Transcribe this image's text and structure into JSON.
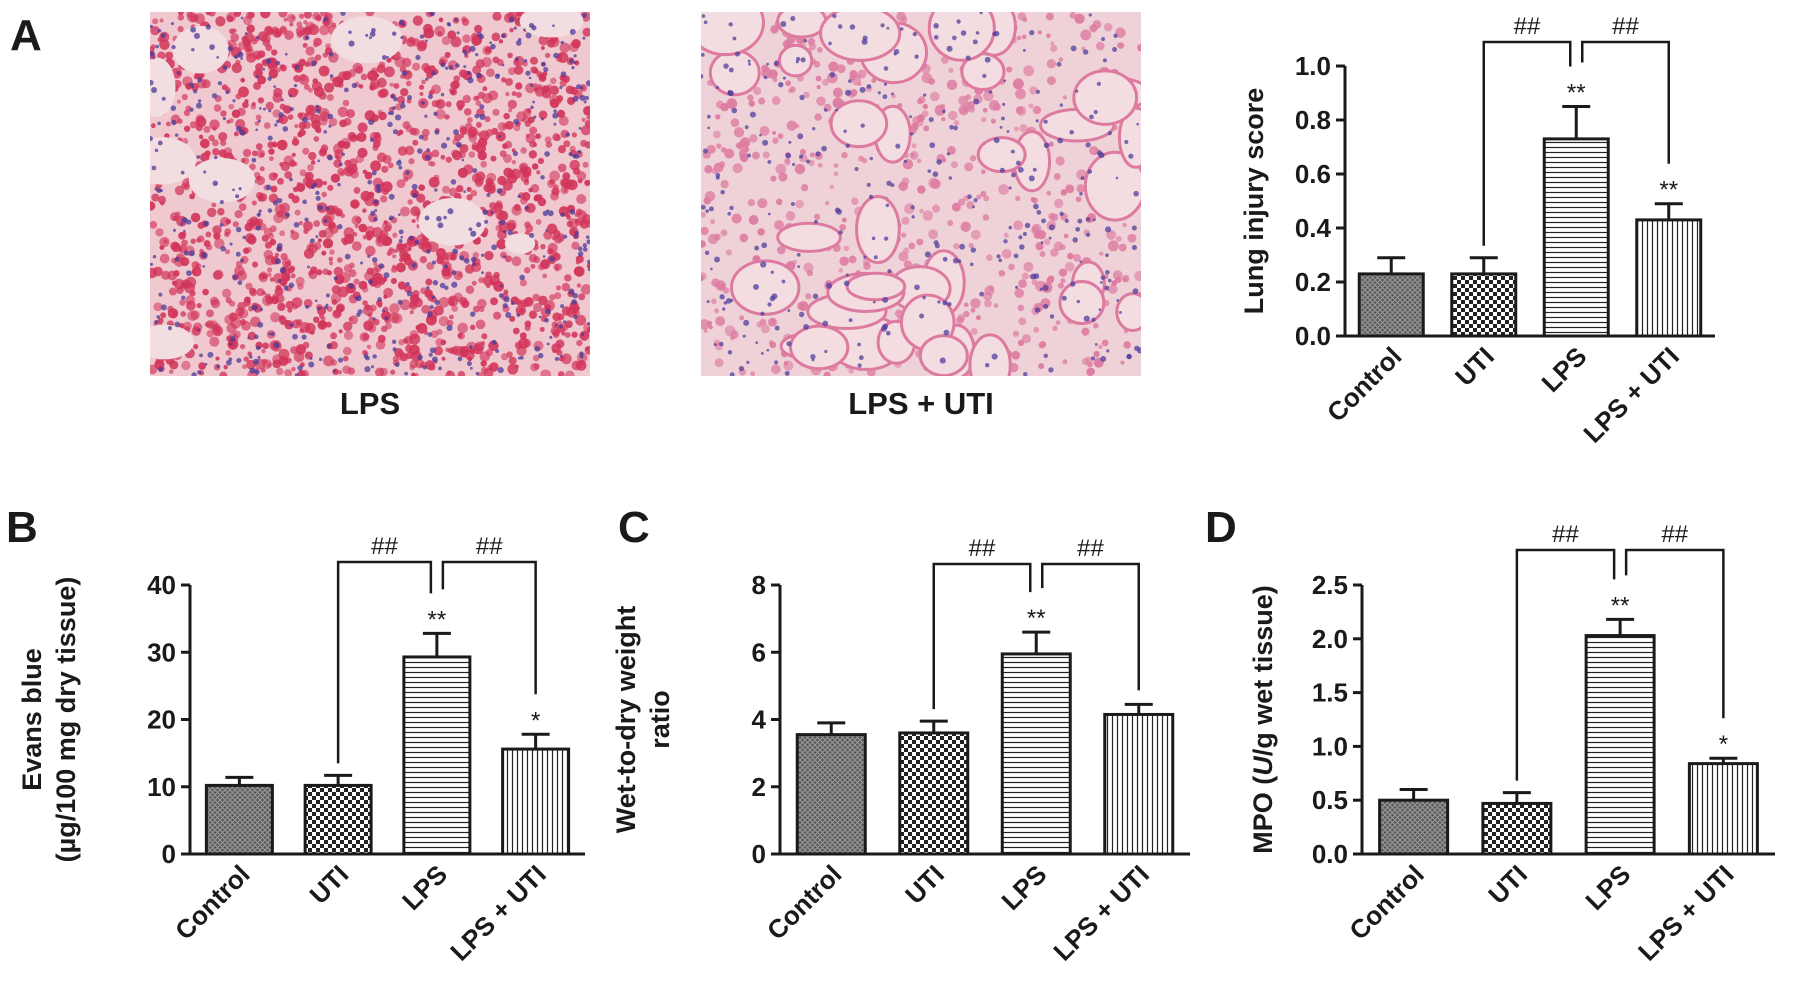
{
  "panels": {
    "a": "A",
    "b": "B",
    "c": "C",
    "d": "D"
  },
  "images": [
    {
      "caption": "LPS",
      "tissue_color": "#d2355a",
      "stain_color": "#4a3a9a",
      "background": "#efc9cf"
    },
    {
      "caption": "LPS + UTI",
      "tissue_color": "#dd7aa0",
      "stain_color": "#4f3f9e",
      "background": "#efd2d8"
    }
  ],
  "chart_data": [
    {
      "type": "bar",
      "categories": [
        "Control",
        "UTI",
        "LPS",
        "LPS + UTI"
      ],
      "values": [
        0.23,
        0.23,
        0.73,
        0.43
      ],
      "errors": [
        0.06,
        0.06,
        0.12,
        0.06
      ],
      "patterns": [
        "crosshatch",
        "checker",
        "horizontal",
        "vertical"
      ],
      "ylabel": "Lung injury score",
      "ylim": [
        0,
        1.0
      ],
      "yticks": [
        "0.0",
        "0.2",
        "0.4",
        "0.6",
        "0.8",
        "1.0"
      ],
      "stars": [
        "",
        "",
        "**",
        "**"
      ],
      "comparisons": [
        {
          "from": 1,
          "to": 2,
          "label": "##"
        },
        {
          "from": 2,
          "to": 3,
          "label": "##"
        }
      ]
    },
    {
      "type": "bar",
      "categories": [
        "Control",
        "UTI",
        "LPS",
        "LPS + UTI"
      ],
      "values": [
        10.2,
        10.2,
        29.3,
        15.6
      ],
      "errors": [
        1.2,
        1.5,
        3.5,
        2.2
      ],
      "patterns": [
        "crosshatch",
        "checker",
        "horizontal",
        "vertical"
      ],
      "ylabel": "Evans blue",
      "ylabel2": "(µg/100 mg dry tissue)",
      "ylim": [
        0,
        40
      ],
      "yticks": [
        "0",
        "10",
        "20",
        "30",
        "40"
      ],
      "stars": [
        "",
        "",
        "**",
        "*"
      ],
      "comparisons": [
        {
          "from": 1,
          "to": 2,
          "label": "##"
        },
        {
          "from": 2,
          "to": 3,
          "label": "##"
        }
      ]
    },
    {
      "type": "bar",
      "categories": [
        "Control",
        "UTI",
        "LPS",
        "LPS + UTI"
      ],
      "values": [
        3.55,
        3.6,
        5.95,
        4.15
      ],
      "errors": [
        0.35,
        0.35,
        0.65,
        0.3
      ],
      "patterns": [
        "crosshatch",
        "checker",
        "horizontal",
        "vertical"
      ],
      "ylabel": "Wet-to-dry weight",
      "ylabel2": "ratio",
      "ylim": [
        0,
        8
      ],
      "yticks": [
        "0",
        "2",
        "4",
        "6",
        "8"
      ],
      "stars": [
        "",
        "",
        "**",
        ""
      ],
      "comparisons": [
        {
          "from": 1,
          "to": 2,
          "label": "##"
        },
        {
          "from": 2,
          "to": 3,
          "label": "##"
        }
      ]
    },
    {
      "type": "bar",
      "categories": [
        "Control",
        "UTI",
        "LPS",
        "LPS + UTI"
      ],
      "values": [
        0.5,
        0.47,
        2.03,
        0.84
      ],
      "errors": [
        0.1,
        0.1,
        0.15,
        0.05
      ],
      "patterns": [
        "crosshatch",
        "checker",
        "horizontal",
        "vertical"
      ],
      "ylabel": "MPO (",
      "ylabel_italic": "U",
      "ylabel_rest": "/g wet tissue)",
      "ylim": [
        0,
        2.5
      ],
      "yticks": [
        "0.0",
        "0.5",
        "1.0",
        "1.5",
        "2.0",
        "2.5"
      ],
      "stars": [
        "",
        "",
        "**",
        "*"
      ],
      "comparisons": [
        {
          "from": 1,
          "to": 2,
          "label": "##"
        },
        {
          "from": 2,
          "to": 3,
          "label": "##"
        }
      ]
    }
  ]
}
